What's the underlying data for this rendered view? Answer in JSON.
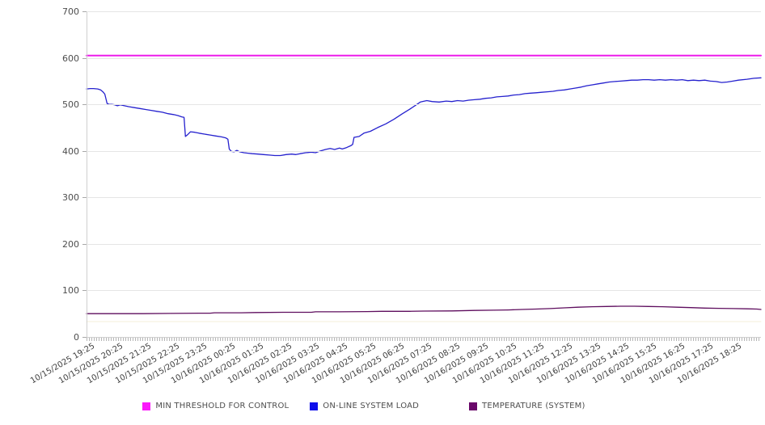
{
  "chart_data": {
    "type": "line",
    "title": "",
    "xlabel": "",
    "ylabel": "",
    "ylim": [
      0,
      700
    ],
    "y_ticks": [
      0,
      100,
      200,
      300,
      400,
      500,
      600,
      700
    ],
    "x_hours_span": 24,
    "grid": "horizontal-only",
    "legend_position": "bottom-center",
    "x_tick_labels": [
      "10/15/2025 19:25",
      "10/15/2025 20:25",
      "10/15/2025 21:25",
      "10/15/2025 22:25",
      "10/15/2025 23:25",
      "10/16/2025 00:25",
      "10/16/2025 01:25",
      "10/16/2025 02:25",
      "10/16/2025 03:25",
      "10/16/2025 04:25",
      "10/16/2025 05:25",
      "10/16/2025 06:25",
      "10/16/2025 07:25",
      "10/16/2025 08:25",
      "10/16/2025 09:25",
      "10/16/2025 10:25",
      "10/16/2025 11:25",
      "10/16/2025 12:25",
      "10/16/2025 13:25",
      "10/16/2025 14:25",
      "10/16/2025 15:25",
      "10/16/2025 16:25",
      "10/16/2025 17:25",
      "10/16/2025 18:25"
    ],
    "series": [
      {
        "name": "MIN THRESHOLD FOR CONTROL",
        "in_legend": true,
        "legend_color": "#FB19FB",
        "line_color": "#ED1CEB",
        "width": 2,
        "points": [
          [
            0,
            605
          ],
          [
            24,
            605
          ]
        ]
      },
      {
        "name": "ON-LINE SYSTEM LOAD",
        "in_legend": true,
        "legend_color": "#0E0EEB",
        "line_color": "#2521CE",
        "width": 1.3,
        "points": [
          [
            0,
            533
          ],
          [
            0.13,
            534
          ],
          [
            0.25,
            534
          ],
          [
            0.4,
            533
          ],
          [
            0.5,
            531
          ],
          [
            0.58,
            527
          ],
          [
            0.65,
            522
          ],
          [
            0.7,
            510
          ],
          [
            0.73,
            502
          ],
          [
            0.8,
            500
          ],
          [
            0.9,
            500
          ],
          [
            1.0,
            499
          ],
          [
            1.1,
            497
          ],
          [
            1.2,
            499
          ],
          [
            1.35,
            497
          ],
          [
            1.5,
            495
          ],
          [
            1.7,
            493
          ],
          [
            1.9,
            491
          ],
          [
            2.1,
            489
          ],
          [
            2.3,
            487
          ],
          [
            2.5,
            485
          ],
          [
            2.7,
            483
          ],
          [
            2.9,
            480
          ],
          [
            3.1,
            478
          ],
          [
            3.25,
            476
          ],
          [
            3.4,
            473
          ],
          [
            3.47,
            472
          ],
          [
            3.52,
            431
          ],
          [
            3.6,
            435
          ],
          [
            3.7,
            441
          ],
          [
            3.85,
            440
          ],
          [
            4.0,
            438
          ],
          [
            4.2,
            436
          ],
          [
            4.4,
            434
          ],
          [
            4.6,
            432
          ],
          [
            4.8,
            430
          ],
          [
            4.95,
            428
          ],
          [
            5.03,
            425
          ],
          [
            5.08,
            404
          ],
          [
            5.15,
            399
          ],
          [
            5.25,
            398
          ],
          [
            5.35,
            401
          ],
          [
            5.45,
            398
          ],
          [
            5.6,
            396
          ],
          [
            5.75,
            395
          ],
          [
            5.9,
            394
          ],
          [
            6.1,
            393
          ],
          [
            6.3,
            392
          ],
          [
            6.5,
            391
          ],
          [
            6.7,
            390
          ],
          [
            6.9,
            390
          ],
          [
            7.1,
            392
          ],
          [
            7.3,
            393
          ],
          [
            7.45,
            392
          ],
          [
            7.6,
            394
          ],
          [
            7.8,
            396
          ],
          [
            8.0,
            397
          ],
          [
            8.15,
            396
          ],
          [
            8.33,
            400
          ],
          [
            8.5,
            403
          ],
          [
            8.67,
            405
          ],
          [
            8.83,
            403
          ],
          [
            9.0,
            406
          ],
          [
            9.1,
            404
          ],
          [
            9.25,
            407
          ],
          [
            9.4,
            411
          ],
          [
            9.47,
            414
          ],
          [
            9.52,
            429
          ],
          [
            9.7,
            431
          ],
          [
            9.87,
            438
          ],
          [
            10.1,
            442
          ],
          [
            10.36,
            450
          ],
          [
            10.65,
            458
          ],
          [
            10.94,
            468
          ],
          [
            11.22,
            479
          ],
          [
            11.51,
            490
          ],
          [
            11.71,
            498
          ],
          [
            11.88,
            505
          ],
          [
            12.11,
            508
          ],
          [
            12.3,
            506
          ],
          [
            12.55,
            505
          ],
          [
            12.8,
            507
          ],
          [
            13.0,
            506
          ],
          [
            13.2,
            508
          ],
          [
            13.4,
            507
          ],
          [
            13.6,
            509
          ],
          [
            13.8,
            510
          ],
          [
            14.0,
            511
          ],
          [
            14.2,
            513
          ],
          [
            14.4,
            514
          ],
          [
            14.6,
            516
          ],
          [
            14.8,
            517
          ],
          [
            15.0,
            518
          ],
          [
            15.2,
            520
          ],
          [
            15.4,
            521
          ],
          [
            15.6,
            523
          ],
          [
            15.8,
            524
          ],
          [
            16.0,
            525
          ],
          [
            16.2,
            526
          ],
          [
            16.4,
            527
          ],
          [
            16.6,
            528
          ],
          [
            16.8,
            530
          ],
          [
            17.0,
            531
          ],
          [
            17.2,
            533
          ],
          [
            17.4,
            535
          ],
          [
            17.6,
            537
          ],
          [
            17.8,
            540
          ],
          [
            18.0,
            542
          ],
          [
            18.2,
            544
          ],
          [
            18.4,
            546
          ],
          [
            18.6,
            548
          ],
          [
            18.8,
            549
          ],
          [
            19.0,
            550
          ],
          [
            19.2,
            551
          ],
          [
            19.4,
            552
          ],
          [
            19.6,
            552
          ],
          [
            19.8,
            553
          ],
          [
            20.0,
            553
          ],
          [
            20.2,
            552
          ],
          [
            20.4,
            553
          ],
          [
            20.6,
            552
          ],
          [
            20.8,
            553
          ],
          [
            21.0,
            552
          ],
          [
            21.2,
            553
          ],
          [
            21.4,
            551
          ],
          [
            21.6,
            552
          ],
          [
            21.8,
            551
          ],
          [
            22.0,
            552
          ],
          [
            22.2,
            550
          ],
          [
            22.4,
            549
          ],
          [
            22.6,
            547
          ],
          [
            22.8,
            548
          ],
          [
            23.0,
            550
          ],
          [
            23.2,
            552
          ],
          [
            23.5,
            554
          ],
          [
            23.75,
            556
          ],
          [
            24,
            557
          ]
        ]
      },
      {
        "name": "TEMPERATURE (SYSTEM)",
        "in_legend": true,
        "legend_color": "#690769",
        "line_color": "#5E0D5E",
        "width": 1.3,
        "points": [
          [
            0,
            50
          ],
          [
            1,
            50
          ],
          [
            2,
            50
          ],
          [
            3,
            50.5
          ],
          [
            4,
            51
          ],
          [
            4.4,
            51
          ],
          [
            4.55,
            52
          ],
          [
            5.5,
            52
          ],
          [
            6,
            52.5
          ],
          [
            7,
            53
          ],
          [
            8,
            53
          ],
          [
            8.15,
            54
          ],
          [
            9,
            54
          ],
          [
            10,
            54.5
          ],
          [
            10.5,
            55
          ],
          [
            11.5,
            55
          ],
          [
            12,
            55.5
          ],
          [
            13,
            56
          ],
          [
            13.8,
            57
          ],
          [
            14.5,
            57.5
          ],
          [
            15,
            58
          ],
          [
            15.5,
            59
          ],
          [
            16,
            60
          ],
          [
            16.5,
            61
          ],
          [
            17,
            62.5
          ],
          [
            17.5,
            64
          ],
          [
            18,
            65
          ],
          [
            18.5,
            65.5
          ],
          [
            19,
            66
          ],
          [
            19.5,
            66
          ],
          [
            20,
            65.5
          ],
          [
            20.5,
            65
          ],
          [
            21,
            64
          ],
          [
            21.5,
            63
          ],
          [
            22,
            62
          ],
          [
            22.5,
            61.5
          ],
          [
            23,
            61
          ],
          [
            23.5,
            60.5
          ],
          [
            23.85,
            60
          ],
          [
            24,
            59
          ]
        ]
      },
      {
        "name": "",
        "in_legend": false,
        "legend_color": null,
        "line_color": "#F5EFD9",
        "width": 1,
        "points": [
          [
            0,
            33
          ],
          [
            24,
            33
          ]
        ]
      }
    ]
  }
}
